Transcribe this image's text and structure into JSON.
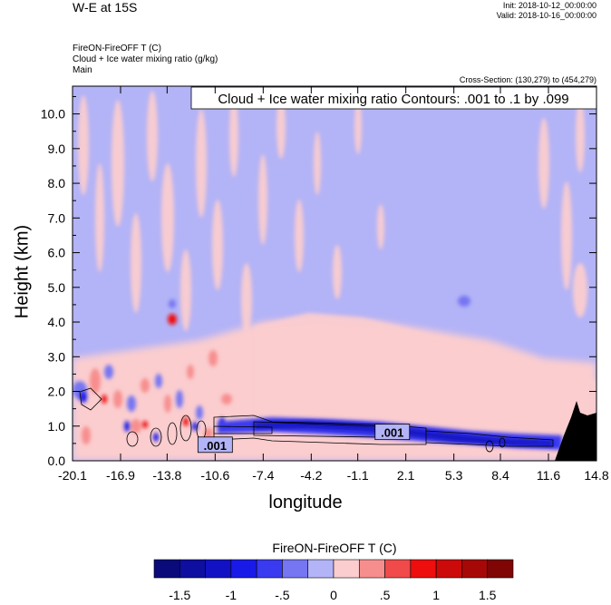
{
  "header": {
    "title": "W-E at 15S",
    "init": "Init: 2018-10-12_00:00:00",
    "valid": "Valid: 2018-10-16_00:00:00",
    "field1": "FireON-FireOFF T   (C)",
    "field2": "Cloud + Ice water mixing ratio   (g/kg)",
    "field3": "Main",
    "cross_section": "Cross-Section: (130,279) to (454,279)"
  },
  "colors": {
    "background_field": "#b3b3f7",
    "lightest_pink": "#fbcdcf",
    "terrain": "#000000",
    "contour": "#000000"
  },
  "chart_data": {
    "type": "heatmap",
    "xlabel": "longitude",
    "ylabel": "Height (km)",
    "x_ticks": [
      "-20.1",
      "-16.9",
      "-13.8",
      "-10.6",
      "-7.4",
      "-4.2",
      "-1.1",
      "2.1",
      "5.3",
      "8.4",
      "11.6",
      "14.8"
    ],
    "xlim": [
      -20.1,
      14.8
    ],
    "y_ticks": [
      "0.0",
      "1.0",
      "2.0",
      "3.0",
      "4.0",
      "5.0",
      "6.0",
      "7.0",
      "8.0",
      "9.0",
      "10.0"
    ],
    "ylim": [
      0,
      10.8
    ],
    "contour_info": "Cloud + Ice water mixing ratio Contours: .001 to .1 by .099",
    "contour_labels": [
      {
        "text": ".001",
        "x": -10.6,
        "y": 0.45
      },
      {
        "text": ".001",
        "x": 1.2,
        "y": 0.82
      }
    ],
    "colorbar": {
      "title": "FireON-FireOFF T  (C)",
      "colors": [
        "#0a0a7a",
        "#0e0ea0",
        "#1212c4",
        "#1a1ae8",
        "#3a3af0",
        "#7676f2",
        "#b3b3f7",
        "#fbcdcf",
        "#f78e8e",
        "#f04a4a",
        "#ee0e0e",
        "#cc0a0a",
        "#a60808",
        "#800505"
      ],
      "tick_labels": [
        "-1.5",
        "-1",
        "-.5",
        "0",
        ".5",
        "1",
        "1.5"
      ]
    }
  }
}
